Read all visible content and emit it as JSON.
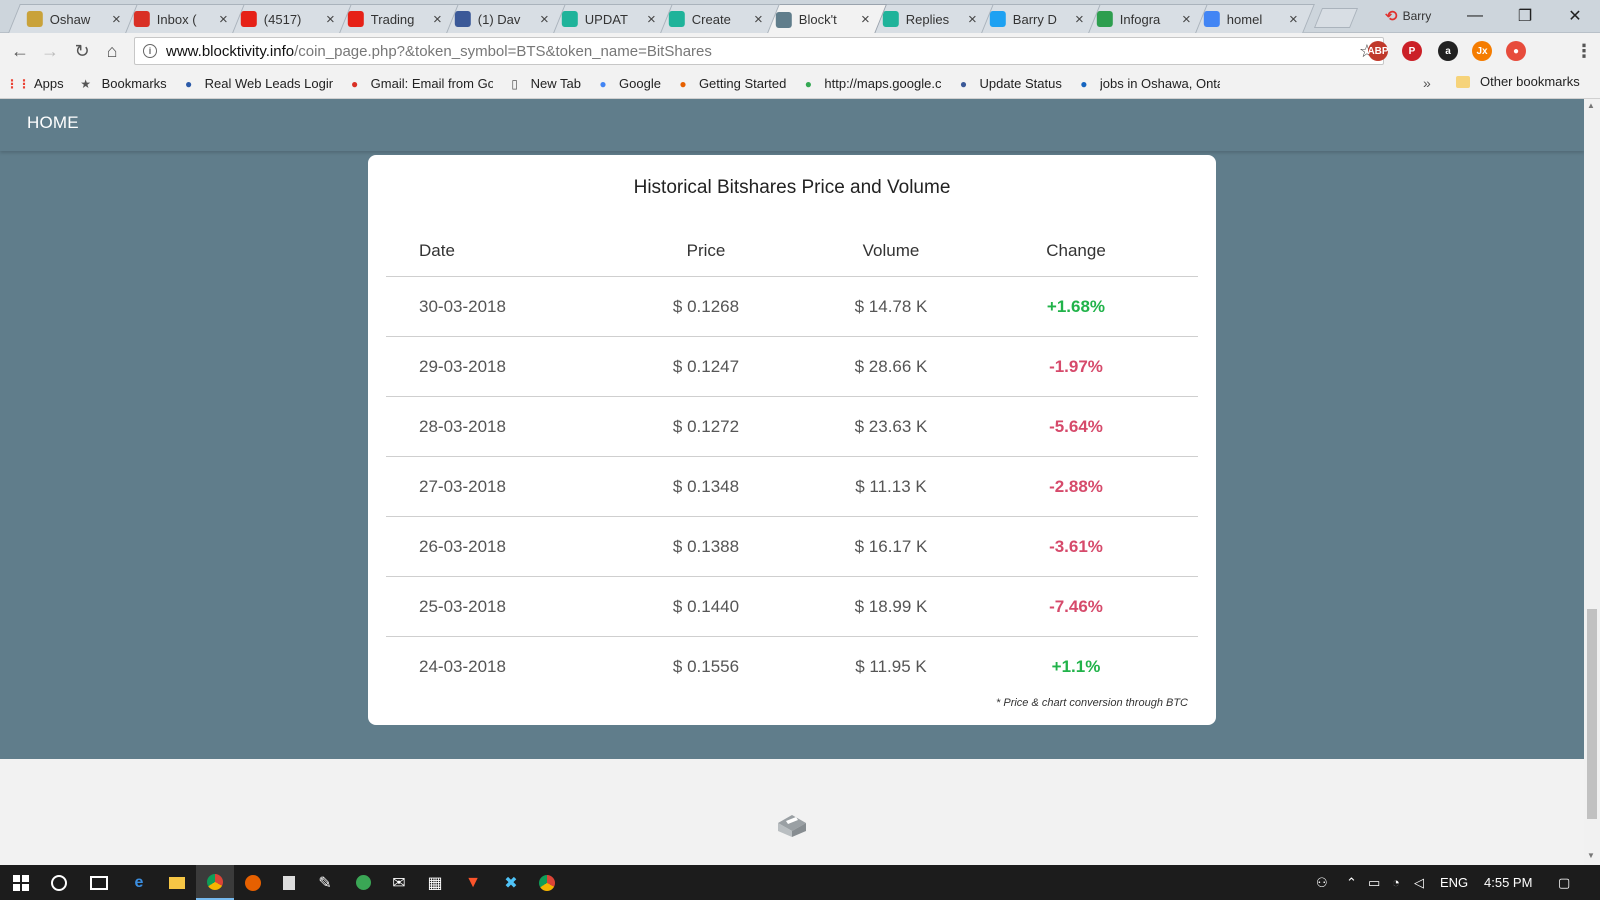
{
  "browser": {
    "tabs": [
      {
        "title": "Oshaw",
        "icon": "globe-icon",
        "color": "#c9a23a"
      },
      {
        "title": "Inbox (",
        "icon": "gmail-icon",
        "color": "#d93025"
      },
      {
        "title": "(4517)",
        "icon": "youtube-icon",
        "color": "#e62117"
      },
      {
        "title": "Trading",
        "icon": "youtube-icon",
        "color": "#e62117"
      },
      {
        "title": "(1) Dav",
        "icon": "facebook-icon",
        "color": "#3b5998"
      },
      {
        "title": "UPDAT",
        "icon": "hootsuite-icon",
        "color": "#1fb39a"
      },
      {
        "title": "Create",
        "icon": "hootsuite-icon",
        "color": "#1fb39a"
      },
      {
        "title": "Block't",
        "icon": "loading-icon",
        "color": "#607d8b"
      },
      {
        "title": "Replies",
        "icon": "hootsuite-icon",
        "color": "#1fb39a"
      },
      {
        "title": "Barry D",
        "icon": "twitter-icon",
        "color": "#1da1f2"
      },
      {
        "title": "Infogra",
        "icon": "chart-icon",
        "color": "#2e9e4f"
      },
      {
        "title": "homel",
        "icon": "google-icon",
        "color": "#4285f4"
      }
    ],
    "active_tab": 7,
    "profile_name": "Barry",
    "url_host": "www.blocktivity.info",
    "url_path": "/coin_page.php?&token_symbol=BTS&token_name=BitShares",
    "extensions": [
      {
        "name": "adblock-icon",
        "label": "ABP",
        "badge": "1",
        "color": "#c0392b"
      },
      {
        "name": "pinterest-icon",
        "label": "P",
        "color": "#cb2027"
      },
      {
        "name": "amazon-icon",
        "label": "a",
        "badge": "5",
        "color": "#222"
      },
      {
        "name": "jx-icon",
        "label": "Jx",
        "color": "#f57c00"
      },
      {
        "name": "record-icon",
        "label": "●",
        "color": "#e74c3c"
      }
    ]
  },
  "bookmarks": [
    {
      "label": "Apps",
      "icon": "apps-icon",
      "color": "#ea4335"
    },
    {
      "label": "Bookmarks",
      "icon": "star-icon",
      "color": "#555"
    },
    {
      "label": "Real Web Leads Login",
      "icon": "leads-icon",
      "color": "#2b5aa8"
    },
    {
      "label": "Gmail: Email from Go",
      "icon": "gmail-icon",
      "color": "#d93025"
    },
    {
      "label": "New Tab",
      "icon": "page-icon",
      "color": "#555"
    },
    {
      "label": "Google",
      "icon": "google-icon",
      "color": "#4285f4"
    },
    {
      "label": "Getting Started",
      "icon": "firefox-icon",
      "color": "#e66000"
    },
    {
      "label": "http://maps.google.c",
      "icon": "maps-icon",
      "color": "#34a853"
    },
    {
      "label": "Update Status",
      "icon": "facebook-icon",
      "color": "#3b5998"
    },
    {
      "label": "jobs in Oshawa, Onta",
      "icon": "ie-icon",
      "color": "#1565c0"
    }
  ],
  "bookmarks_more": "»",
  "bookmarks_other": "Other bookmarks",
  "site": {
    "nav_home": "HOME",
    "card_title": "Historical Bitshares Price and Volume",
    "columns": [
      "Date",
      "Price",
      "Volume",
      "Change"
    ],
    "rows": [
      {
        "date": "30-03-2018",
        "price": "$ 0.1268",
        "volume": "$ 14.78 K",
        "change": "+1.68%",
        "dir": "pos"
      },
      {
        "date": "29-03-2018",
        "price": "$ 0.1247",
        "volume": "$ 28.66 K",
        "change": "-1.97%",
        "dir": "neg"
      },
      {
        "date": "28-03-2018",
        "price": "$ 0.1272",
        "volume": "$ 23.63 K",
        "change": "-5.64%",
        "dir": "neg"
      },
      {
        "date": "27-03-2018",
        "price": "$ 0.1348",
        "volume": "$ 11.13 K",
        "change": "-2.88%",
        "dir": "neg"
      },
      {
        "date": "26-03-2018",
        "price": "$ 0.1388",
        "volume": "$ 16.17 K",
        "change": "-3.61%",
        "dir": "neg"
      },
      {
        "date": "25-03-2018",
        "price": "$ 0.1440",
        "volume": "$ 18.99 K",
        "change": "-7.46%",
        "dir": "neg"
      },
      {
        "date": "24-03-2018",
        "price": "$ 0.1556",
        "volume": "$ 11.95 K",
        "change": "+1.1%",
        "dir": "pos"
      }
    ],
    "footnote": "* Price & chart conversion through BTC",
    "colors": {
      "hero": "#607d8b",
      "positive": "#21b34a",
      "negative": "#d64a6b"
    }
  },
  "taskbar": {
    "language": "ENG",
    "time": "4:55 PM"
  }
}
